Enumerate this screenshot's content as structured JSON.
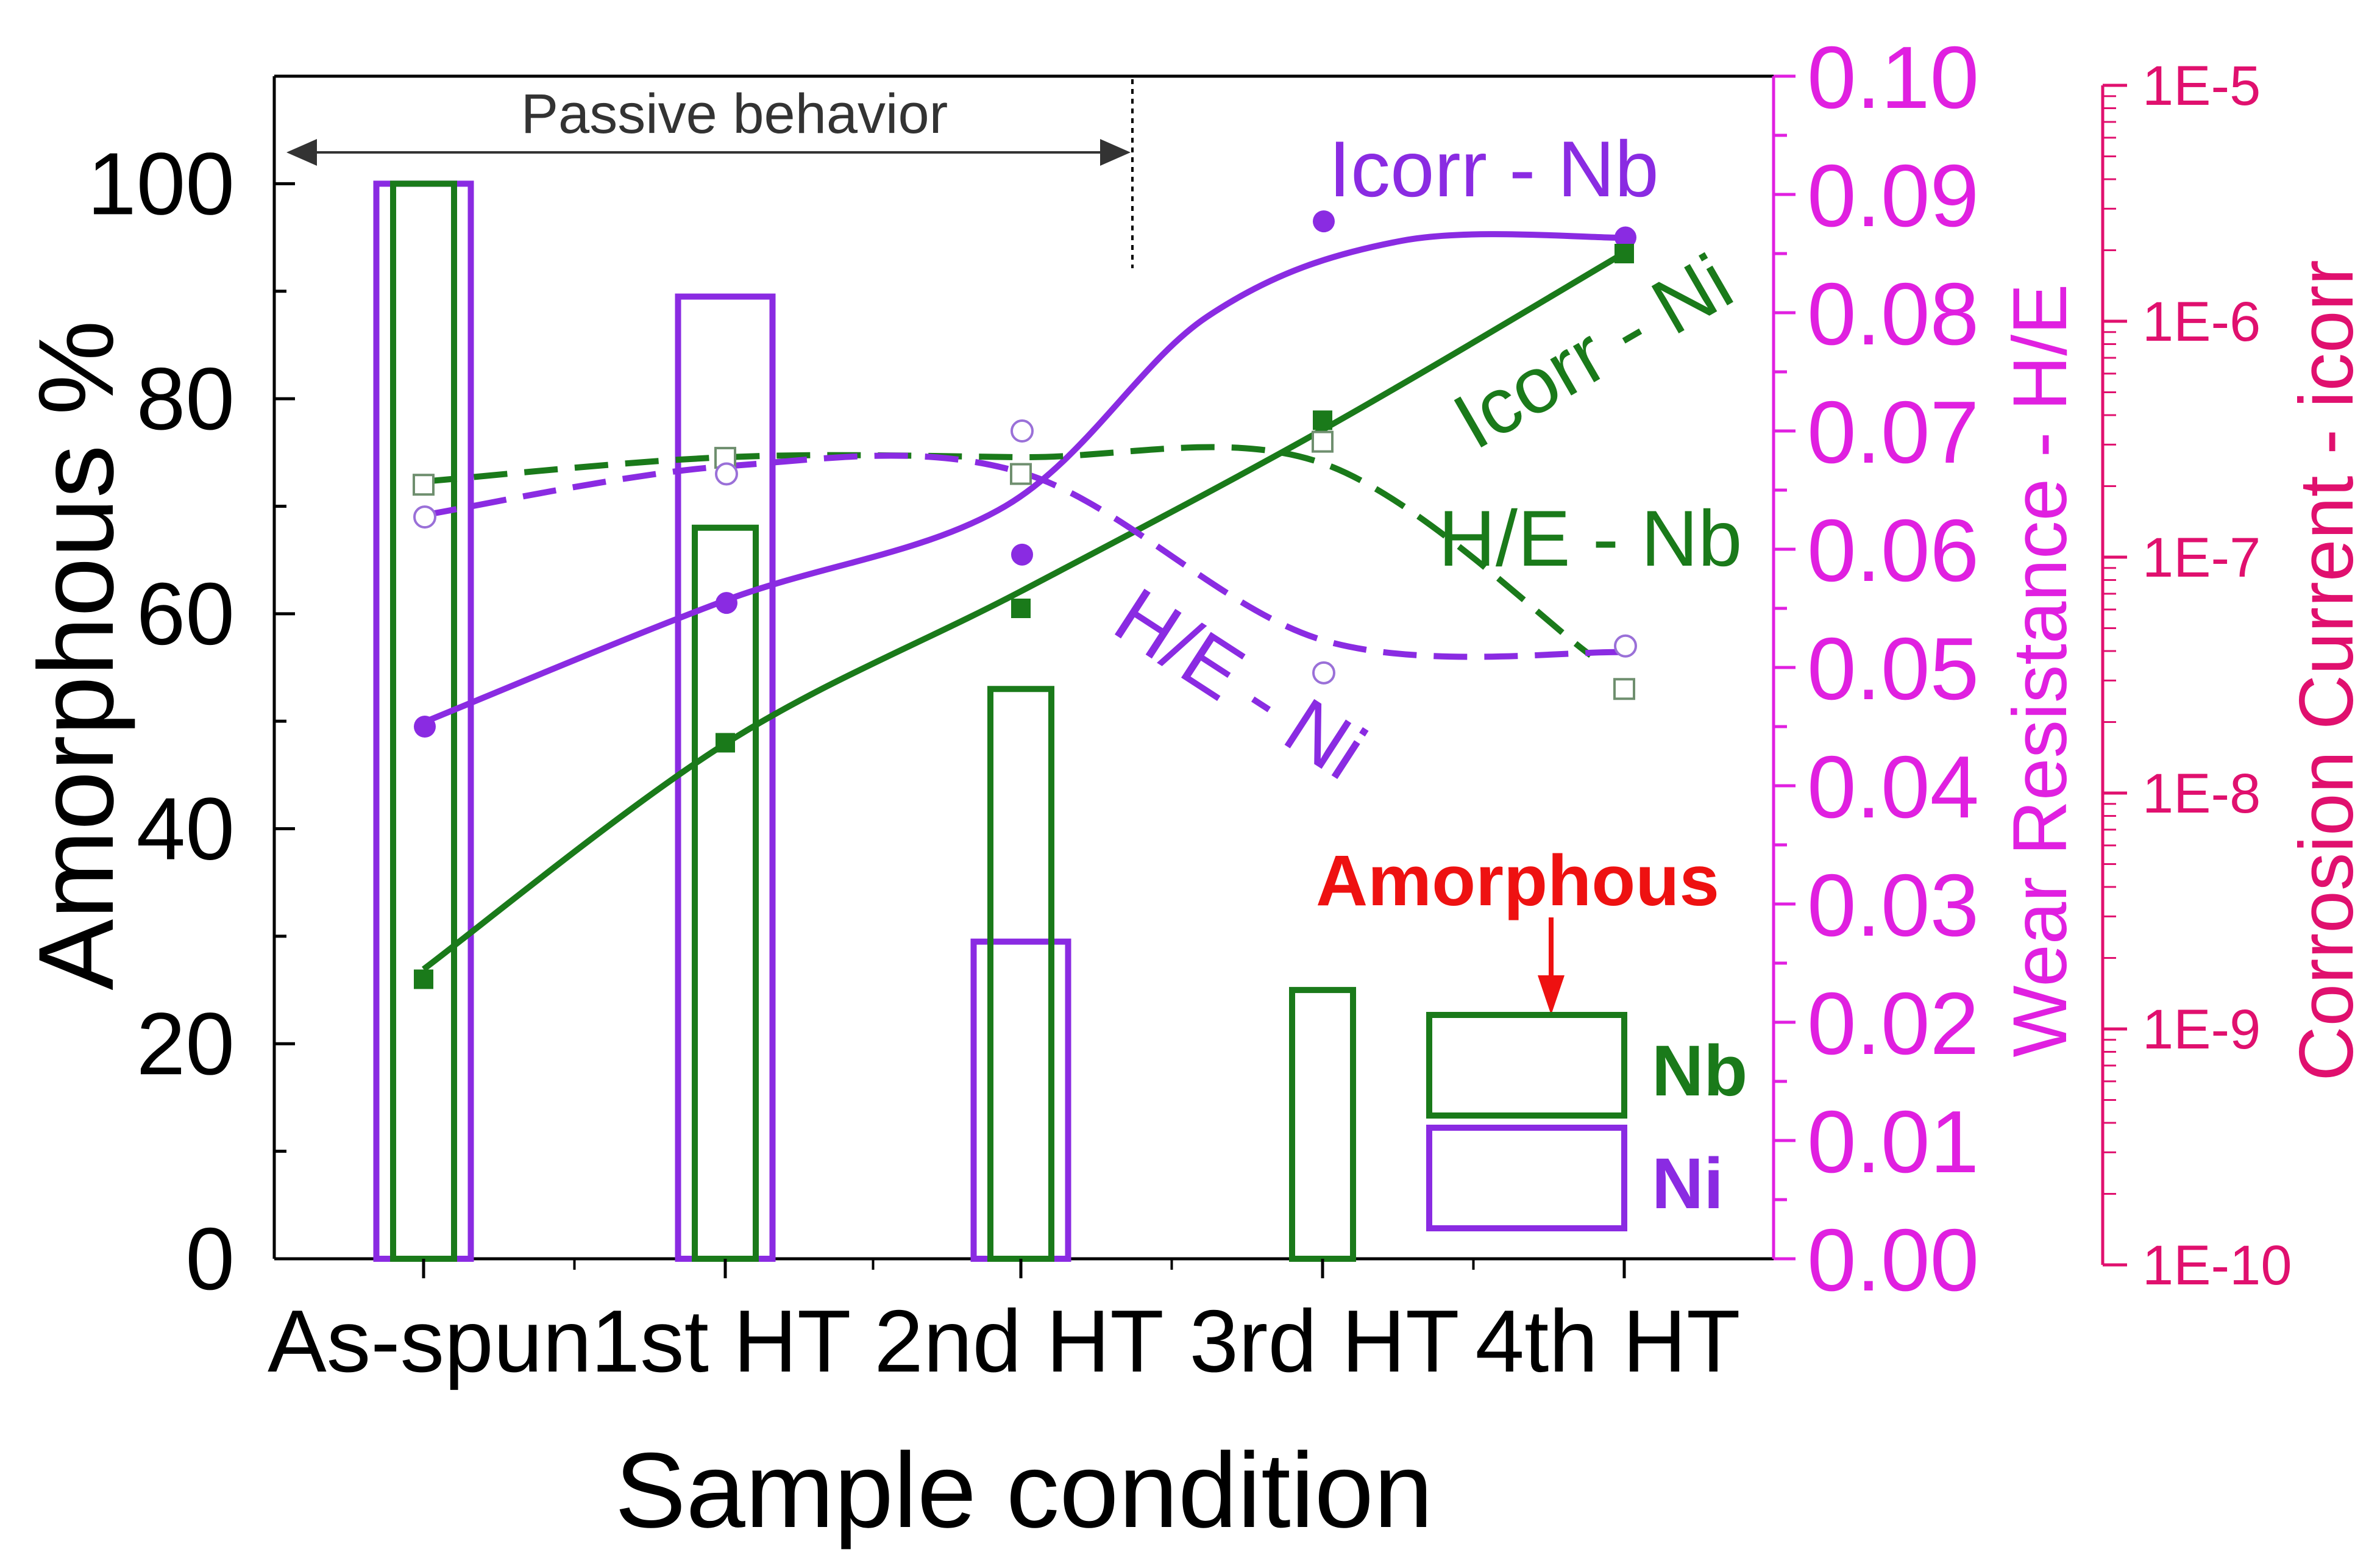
{
  "chart_data": {
    "type": "bar",
    "categories": [
      "As-spun",
      "1st HT",
      "2nd HT",
      "3rd HT",
      "4th HT"
    ],
    "xlabel": "Sample condition",
    "ylabel": "Amorphous %",
    "ylim": [
      0,
      110
    ],
    "yticks": [
      "0",
      "20",
      "40",
      "60",
      "80",
      "100"
    ],
    "y2label": "Wear Resistance - H/E",
    "y2lim": [
      0,
      0.1
    ],
    "y2ticks": [
      "0.00",
      "0.01",
      "0.02",
      "0.03",
      "0.04",
      "0.05",
      "0.06",
      "0.07",
      "0.08",
      "0.09",
      "0.10"
    ],
    "y3label": "Corrosion Current - icorr",
    "y3lim": [
      "1E-10",
      "1E-5"
    ],
    "y3ticks": [
      "1E-10",
      "1E-9",
      "1E-8",
      "1E-7",
      "1E-6",
      "1E-5"
    ],
    "bars": [
      {
        "name": "Nb",
        "color": "#1a7a1a",
        "values": [
          100,
          68,
          53,
          25,
          null
        ]
      },
      {
        "name": "Ni",
        "color": "#8a2be2",
        "values": [
          100,
          89.5,
          29.5,
          null,
          null
        ]
      }
    ],
    "series": [
      {
        "name": "Icorr - Nb",
        "color": "#8a2be2",
        "style": "solid",
        "marker": "filled-circle",
        "values": [
          49.5,
          61,
          65.5,
          96.5,
          95
        ]
      },
      {
        "name": "Icorr - Ni",
        "color": "#1a7a1a",
        "style": "solid",
        "marker": "filled-square",
        "values": [
          26,
          48,
          60.5,
          78,
          93.5
        ]
      },
      {
        "name": "H/E - Nb",
        "color": "#1a7a1a",
        "style": "dashed",
        "marker": "open-square",
        "values": [
          72,
          74.5,
          73,
          76,
          53
        ]
      },
      {
        "name": "H/E - Ni",
        "color": "#8a2be2",
        "style": "dashed",
        "marker": "open-circle",
        "values": [
          69,
          73,
          77,
          54.5,
          57
        ]
      }
    ],
    "annotations": {
      "passive_label": "Passive behavior",
      "amorphous_label": "Amorphous"
    },
    "legend": {
      "position": "bottom-right",
      "entries": [
        "Nb",
        "Ni"
      ]
    },
    "colors": {
      "axis": "#000000",
      "y2": "#e020e0",
      "y3": "#e0106e",
      "note": "#ee1111"
    }
  }
}
